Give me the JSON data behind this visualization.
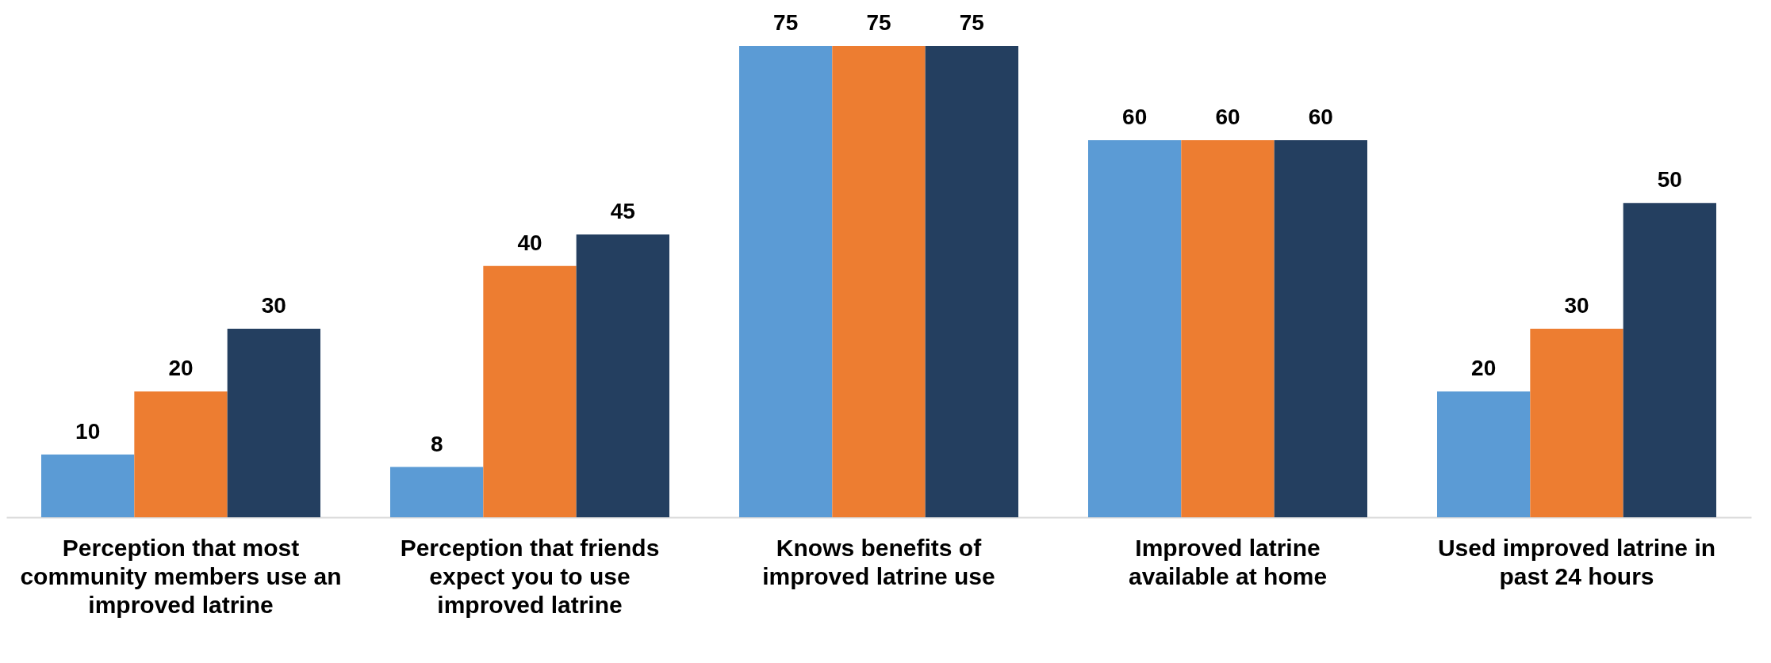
{
  "chart_data": {
    "type": "bar",
    "categories": [
      "Perception that most community members use an improved latrine",
      "Perception that friends expect you to use improved latrine",
      "Knows benefits of improved latrine use",
      "Improved latrine available at home",
      "Used improved latrine in past 24 hours"
    ],
    "series": [
      {
        "color": "#5b9bd5",
        "values": [
          10,
          8,
          75,
          60,
          20
        ]
      },
      {
        "color": "#ed7d31",
        "values": [
          20,
          40,
          75,
          60,
          30
        ]
      },
      {
        "color": "#243f60",
        "values": [
          30,
          45,
          75,
          60,
          50
        ]
      }
    ],
    "data_labels": true
  }
}
